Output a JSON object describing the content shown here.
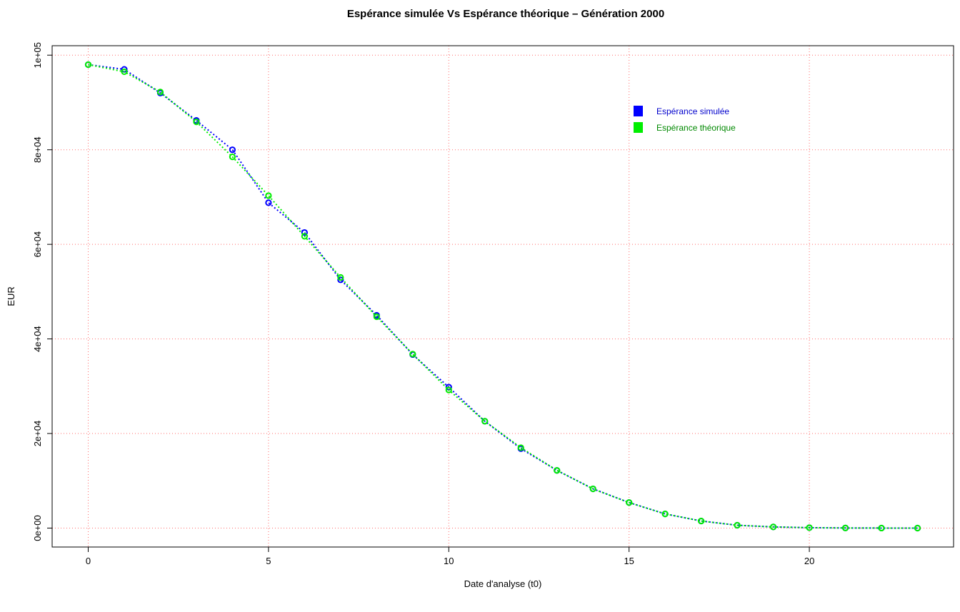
{
  "chart_data": {
    "type": "line",
    "title": "Espérance simulée Vs Espérance théorique – Génération 2000",
    "xlabel": "Date d'analyse (t0)",
    "ylabel": "EUR",
    "xlim": [
      -1,
      24
    ],
    "ylim": [
      -4000,
      102000
    ],
    "x_ticks": [
      0,
      5,
      10,
      15,
      20
    ],
    "y_ticks": [
      0,
      20000,
      40000,
      60000,
      80000,
      100000
    ],
    "y_tick_labels": [
      "0e+00",
      "2e+04",
      "4e+04",
      "6e+04",
      "8e+04",
      "1e+05"
    ],
    "grid": true,
    "grid_color": "#ff6b6b",
    "legend_position": "top-right",
    "x": [
      0,
      1,
      2,
      3,
      4,
      5,
      6,
      7,
      8,
      9,
      10,
      11,
      12,
      13,
      14,
      15,
      16,
      17,
      18,
      19,
      20,
      21,
      22,
      23
    ],
    "series": [
      {
        "name": "Espérance simulée",
        "color": "#0000ff",
        "text_color": "#0000cc",
        "values": [
          98000,
          97000,
          92000,
          86200,
          80000,
          68800,
          62500,
          52500,
          45000,
          36700,
          29800,
          22600,
          16800,
          12200,
          8300,
          5400,
          3000,
          1500,
          600,
          250,
          90,
          30,
          10,
          0
        ]
      },
      {
        "name": "Espérance théorique",
        "color": "#00ee00",
        "text_color": "#008800",
        "values": [
          98000,
          96500,
          92200,
          85900,
          78500,
          70300,
          61700,
          53000,
          44700,
          36800,
          29200,
          22600,
          17000,
          12200,
          8300,
          5400,
          3000,
          1500,
          600,
          250,
          90,
          30,
          10,
          0
        ]
      }
    ]
  }
}
